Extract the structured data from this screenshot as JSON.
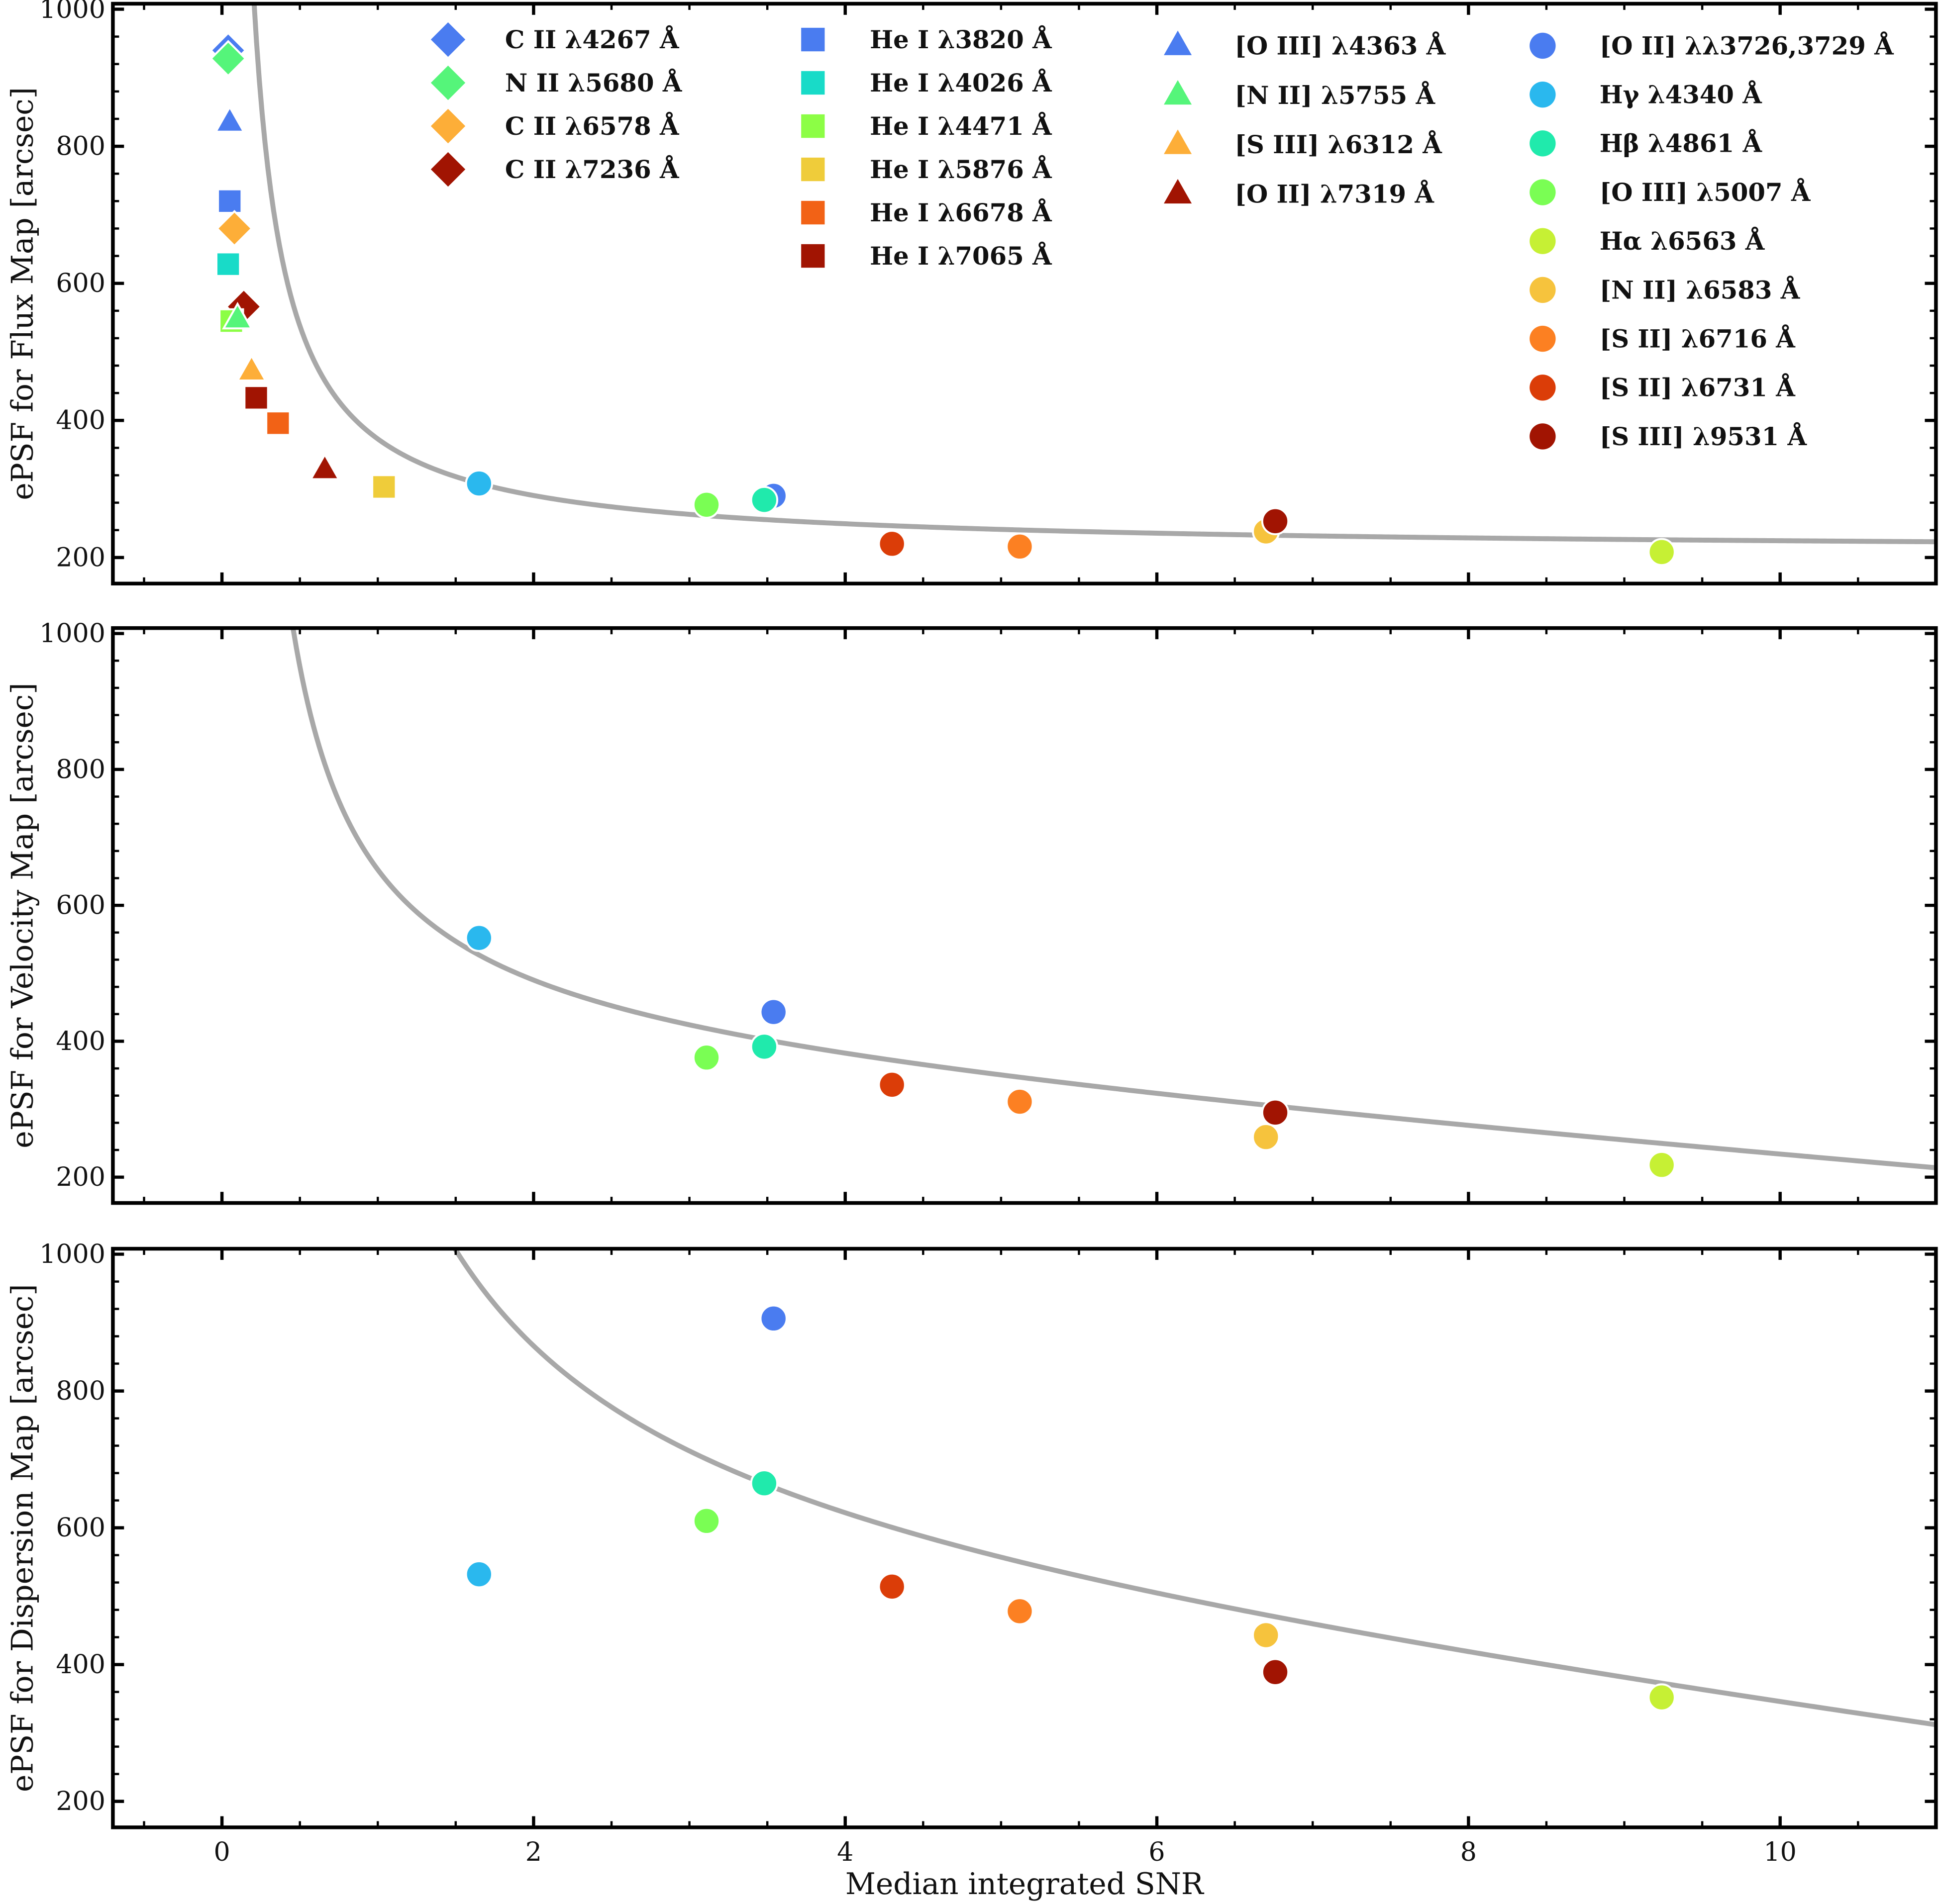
{
  "chart_data": {
    "type": "scatter",
    "xlabel": "Median integrated SNR",
    "xlim": [
      -0.7,
      11.0
    ],
    "xticks": [
      0,
      2,
      4,
      6,
      8,
      10
    ],
    "yticks": [
      200,
      400,
      600,
      800,
      1000
    ],
    "legend": {
      "placement": "top (inside top panel)",
      "columns": [
        [
          "CII_4267",
          "NII_5680",
          "CII_6578",
          "CII_7236"
        ],
        [
          "HeI_3820",
          "HeI_4026",
          "HeI_4471",
          "HeI_5876",
          "HeI_6678",
          "HeI_7065"
        ],
        [
          "OIII_4363",
          "NII_5755",
          "SIII_6312",
          "OII_7319"
        ],
        [
          "OII_3726_3729",
          "Hgamma_4340",
          "Hbeta_4861",
          "OIII_5007",
          "Halpha_6563",
          "NII_6583",
          "SII_6716",
          "SII_6731",
          "SIII_9531"
        ]
      ]
    },
    "series_styles": {
      "CII_4267": {
        "label": "C II λ4267 Å",
        "marker": "diamond",
        "color": "#4a7cf0"
      },
      "NII_5680": {
        "label": "N II λ5680 Å",
        "marker": "diamond",
        "color": "#55f57a"
      },
      "CII_6578": {
        "label": "C II λ6578 Å",
        "marker": "diamond",
        "color": "#fdae38"
      },
      "CII_7236": {
        "label": "C II λ7236 Å",
        "marker": "diamond",
        "color": "#a11402"
      },
      "HeI_3820": {
        "label": "He I λ3820 Å",
        "marker": "square",
        "color": "#4a7cf0"
      },
      "HeI_4026": {
        "label": "He I λ4026 Å",
        "marker": "square",
        "color": "#18dbc8"
      },
      "HeI_4471": {
        "label": "He I λ4471 Å",
        "marker": "square",
        "color": "#8cfe45"
      },
      "HeI_5876": {
        "label": "He I λ5876 Å",
        "marker": "square",
        "color": "#efcc3a"
      },
      "HeI_6678": {
        "label": "He I λ6678 Å",
        "marker": "square",
        "color": "#f26216"
      },
      "HeI_7065": {
        "label": "He I λ7065 Å",
        "marker": "square",
        "color": "#a11402"
      },
      "OIII_4363": {
        "label": "[O III] λ4363 Å",
        "marker": "triangle",
        "color": "#4a7cf0"
      },
      "NII_5755": {
        "label": "[N II] λ5755 Å",
        "marker": "triangle",
        "color": "#55f57a"
      },
      "SIII_6312": {
        "label": "[S III] λ6312 Å",
        "marker": "triangle",
        "color": "#fdae38"
      },
      "OII_7319": {
        "label": "[O II] λ7319 Å",
        "marker": "triangle",
        "color": "#a11402"
      },
      "OII_3726_3729": {
        "label": "[O II] λλ3726,3729 Å",
        "marker": "circle",
        "color": "#4a7cf0"
      },
      "Hgamma_4340": {
        "label": "Hγ λ4340 Å",
        "marker": "circle",
        "color": "#2ab8ee"
      },
      "Hbeta_4861": {
        "label": "Hβ λ4861 Å",
        "marker": "circle",
        "color": "#20eaac"
      },
      "OIII_5007": {
        "label": "[O III] λ5007 Å",
        "marker": "circle",
        "color": "#7afe54"
      },
      "Halpha_6563": {
        "label": "Hα λ6563 Å",
        "marker": "circle",
        "color": "#c6f034"
      },
      "NII_6583": {
        "label": "[N II] λ6583 Å",
        "marker": "circle",
        "color": "#f6c33d"
      },
      "SII_6716": {
        "label": "[S II] λ6716 Å",
        "marker": "circle",
        "color": "#fc8022"
      },
      "SII_6731": {
        "label": "[S II] λ6731 Å",
        "marker": "circle",
        "color": "#db3d08"
      },
      "SIII_9531": {
        "label": "[S III] λ9531 Å",
        "marker": "circle",
        "color": "#a11402"
      }
    },
    "fit_line_color": "#a8a8a8",
    "panels": [
      {
        "id": "flux",
        "ylabel": "ePSF for Flux Map [arcsec]",
        "ylim": [
          162,
          1008
        ],
        "fit_curve": {
          "form": "y = a + b/x",
          "a": 208,
          "b": 165
        },
        "points": [
          {
            "series": "CII_4267",
            "x": 0.04,
            "y": 940
          },
          {
            "series": "NII_5680",
            "x": 0.04,
            "y": 928
          },
          {
            "series": "OIII_4363",
            "x": 0.05,
            "y": 835
          },
          {
            "series": "HeI_3820",
            "x": 0.05,
            "y": 720
          },
          {
            "series": "CII_6578",
            "x": 0.08,
            "y": 680
          },
          {
            "series": "HeI_4026",
            "x": 0.04,
            "y": 628
          },
          {
            "series": "CII_7236",
            "x": 0.14,
            "y": 566
          },
          {
            "series": "HeI_4471",
            "x": 0.06,
            "y": 545
          },
          {
            "series": "NII_5755",
            "x": 0.1,
            "y": 548
          },
          {
            "series": "SIII_6312",
            "x": 0.19,
            "y": 472
          },
          {
            "series": "HeI_7065",
            "x": 0.22,
            "y": 433
          },
          {
            "series": "HeI_6678",
            "x": 0.36,
            "y": 396
          },
          {
            "series": "OII_7319",
            "x": 0.66,
            "y": 328
          },
          {
            "series": "HeI_5876",
            "x": 1.04,
            "y": 303
          },
          {
            "series": "Hgamma_4340",
            "x": 1.65,
            "y": 308
          },
          {
            "series": "OIII_5007",
            "x": 3.11,
            "y": 277
          },
          {
            "series": "OII_3726_3729",
            "x": 3.54,
            "y": 290
          },
          {
            "series": "Hbeta_4861",
            "x": 3.48,
            "y": 284
          },
          {
            "series": "SII_6731",
            "x": 4.3,
            "y": 220
          },
          {
            "series": "SII_6716",
            "x": 5.12,
            "y": 216
          },
          {
            "series": "NII_6583",
            "x": 6.7,
            "y": 238
          },
          {
            "series": "SIII_9531",
            "x": 6.76,
            "y": 253
          },
          {
            "series": "Halpha_6563",
            "x": 9.24,
            "y": 208
          }
        ]
      },
      {
        "id": "velocity",
        "ylabel": "ePSF for Velocity Map [arcsec]",
        "ylim": [
          162,
          1008
        ],
        "fit_curve": {
          "form": "y = a + b/x + c*x",
          "a": 380,
          "b": 290,
          "c": -17.5
        },
        "points": [
          {
            "series": "Hgamma_4340",
            "x": 1.65,
            "y": 552
          },
          {
            "series": "OII_3726_3729",
            "x": 3.54,
            "y": 443
          },
          {
            "series": "OIII_5007",
            "x": 3.11,
            "y": 376
          },
          {
            "series": "Hbeta_4861",
            "x": 3.48,
            "y": 392
          },
          {
            "series": "SII_6731",
            "x": 4.3,
            "y": 336
          },
          {
            "series": "SII_6716",
            "x": 5.12,
            "y": 311
          },
          {
            "series": "SIII_9531",
            "x": 6.76,
            "y": 295
          },
          {
            "series": "NII_6583",
            "x": 6.7,
            "y": 259
          },
          {
            "series": "Halpha_6563",
            "x": 9.24,
            "y": 218
          }
        ]
      },
      {
        "id": "dispersion",
        "ylabel": "ePSF for Dispersion Map [arcsec]",
        "ylim": [
          162,
          1008
        ],
        "fit_curve": {
          "form": "y = a + b/x + c*x",
          "a": 540,
          "b": 760,
          "c": -27
        },
        "points": [
          {
            "series": "OII_3726_3729",
            "x": 3.54,
            "y": 906
          },
          {
            "series": "Hbeta_4861",
            "x": 3.48,
            "y": 665
          },
          {
            "series": "OIII_5007",
            "x": 3.11,
            "y": 610
          },
          {
            "series": "Hgamma_4340",
            "x": 1.65,
            "y": 532
          },
          {
            "series": "SII_6731",
            "x": 4.3,
            "y": 514
          },
          {
            "series": "SII_6716",
            "x": 5.12,
            "y": 478
          },
          {
            "series": "NII_6583",
            "x": 6.7,
            "y": 443
          },
          {
            "series": "SIII_9531",
            "x": 6.76,
            "y": 389
          },
          {
            "series": "Halpha_6563",
            "x": 9.24,
            "y": 352
          }
        ]
      }
    ]
  }
}
